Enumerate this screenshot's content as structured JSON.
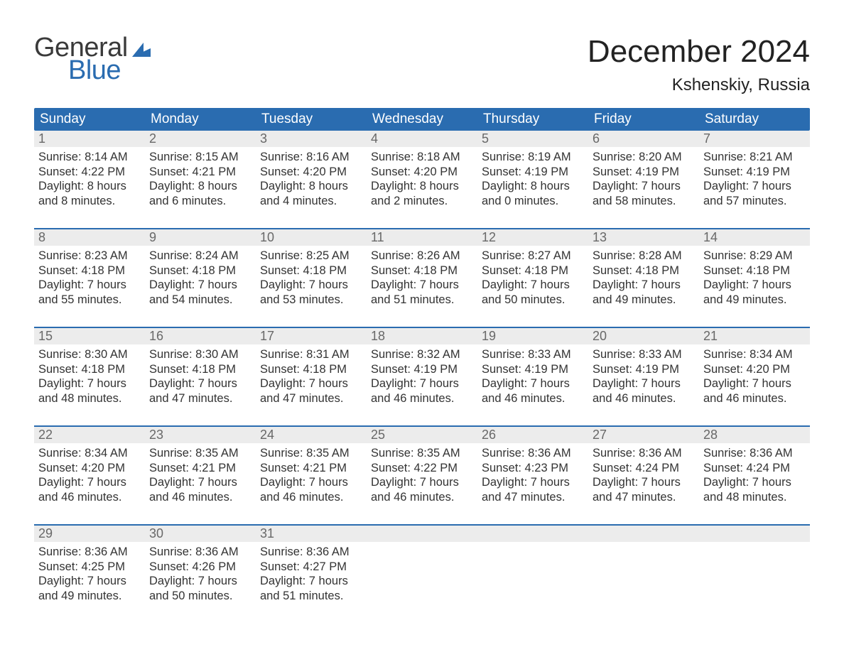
{
  "brand": {
    "word1": "General",
    "word2": "Blue",
    "color_general": "#3a3a3a",
    "color_blue": "#2a6cb0"
  },
  "header": {
    "month_title": "December 2024",
    "location": "Kshenskiy, Russia"
  },
  "style": {
    "header_bg": "#2a6cb0",
    "header_text": "#ffffff",
    "daynum_bg": "#ececec",
    "daynum_text": "#686868",
    "body_text": "#303030",
    "week_divider": "#2a6cb0",
    "page_bg": "#ffffff",
    "font_family": "Arial",
    "month_title_fontsize": 44,
    "location_fontsize": 24,
    "weekday_fontsize": 19,
    "cell_fontsize": 16.5
  },
  "weekdays": [
    "Sunday",
    "Monday",
    "Tuesday",
    "Wednesday",
    "Thursday",
    "Friday",
    "Saturday"
  ],
  "weeks": [
    [
      {
        "n": "1",
        "sunrise": "Sunrise: 8:14 AM",
        "sunset": "Sunset: 4:22 PM",
        "day1": "Daylight: 8 hours",
        "day2": "and 8 minutes."
      },
      {
        "n": "2",
        "sunrise": "Sunrise: 8:15 AM",
        "sunset": "Sunset: 4:21 PM",
        "day1": "Daylight: 8 hours",
        "day2": "and 6 minutes."
      },
      {
        "n": "3",
        "sunrise": "Sunrise: 8:16 AM",
        "sunset": "Sunset: 4:20 PM",
        "day1": "Daylight: 8 hours",
        "day2": "and 4 minutes."
      },
      {
        "n": "4",
        "sunrise": "Sunrise: 8:18 AM",
        "sunset": "Sunset: 4:20 PM",
        "day1": "Daylight: 8 hours",
        "day2": "and 2 minutes."
      },
      {
        "n": "5",
        "sunrise": "Sunrise: 8:19 AM",
        "sunset": "Sunset: 4:19 PM",
        "day1": "Daylight: 8 hours",
        "day2": "and 0 minutes."
      },
      {
        "n": "6",
        "sunrise": "Sunrise: 8:20 AM",
        "sunset": "Sunset: 4:19 PM",
        "day1": "Daylight: 7 hours",
        "day2": "and 58 minutes."
      },
      {
        "n": "7",
        "sunrise": "Sunrise: 8:21 AM",
        "sunset": "Sunset: 4:19 PM",
        "day1": "Daylight: 7 hours",
        "day2": "and 57 minutes."
      }
    ],
    [
      {
        "n": "8",
        "sunrise": "Sunrise: 8:23 AM",
        "sunset": "Sunset: 4:18 PM",
        "day1": "Daylight: 7 hours",
        "day2": "and 55 minutes."
      },
      {
        "n": "9",
        "sunrise": "Sunrise: 8:24 AM",
        "sunset": "Sunset: 4:18 PM",
        "day1": "Daylight: 7 hours",
        "day2": "and 54 minutes."
      },
      {
        "n": "10",
        "sunrise": "Sunrise: 8:25 AM",
        "sunset": "Sunset: 4:18 PM",
        "day1": "Daylight: 7 hours",
        "day2": "and 53 minutes."
      },
      {
        "n": "11",
        "sunrise": "Sunrise: 8:26 AM",
        "sunset": "Sunset: 4:18 PM",
        "day1": "Daylight: 7 hours",
        "day2": "and 51 minutes."
      },
      {
        "n": "12",
        "sunrise": "Sunrise: 8:27 AM",
        "sunset": "Sunset: 4:18 PM",
        "day1": "Daylight: 7 hours",
        "day2": "and 50 minutes."
      },
      {
        "n": "13",
        "sunrise": "Sunrise: 8:28 AM",
        "sunset": "Sunset: 4:18 PM",
        "day1": "Daylight: 7 hours",
        "day2": "and 49 minutes."
      },
      {
        "n": "14",
        "sunrise": "Sunrise: 8:29 AM",
        "sunset": "Sunset: 4:18 PM",
        "day1": "Daylight: 7 hours",
        "day2": "and 49 minutes."
      }
    ],
    [
      {
        "n": "15",
        "sunrise": "Sunrise: 8:30 AM",
        "sunset": "Sunset: 4:18 PM",
        "day1": "Daylight: 7 hours",
        "day2": "and 48 minutes."
      },
      {
        "n": "16",
        "sunrise": "Sunrise: 8:30 AM",
        "sunset": "Sunset: 4:18 PM",
        "day1": "Daylight: 7 hours",
        "day2": "and 47 minutes."
      },
      {
        "n": "17",
        "sunrise": "Sunrise: 8:31 AM",
        "sunset": "Sunset: 4:18 PM",
        "day1": "Daylight: 7 hours",
        "day2": "and 47 minutes."
      },
      {
        "n": "18",
        "sunrise": "Sunrise: 8:32 AM",
        "sunset": "Sunset: 4:19 PM",
        "day1": "Daylight: 7 hours",
        "day2": "and 46 minutes."
      },
      {
        "n": "19",
        "sunrise": "Sunrise: 8:33 AM",
        "sunset": "Sunset: 4:19 PM",
        "day1": "Daylight: 7 hours",
        "day2": "and 46 minutes."
      },
      {
        "n": "20",
        "sunrise": "Sunrise: 8:33 AM",
        "sunset": "Sunset: 4:19 PM",
        "day1": "Daylight: 7 hours",
        "day2": "and 46 minutes."
      },
      {
        "n": "21",
        "sunrise": "Sunrise: 8:34 AM",
        "sunset": "Sunset: 4:20 PM",
        "day1": "Daylight: 7 hours",
        "day2": "and 46 minutes."
      }
    ],
    [
      {
        "n": "22",
        "sunrise": "Sunrise: 8:34 AM",
        "sunset": "Sunset: 4:20 PM",
        "day1": "Daylight: 7 hours",
        "day2": "and 46 minutes."
      },
      {
        "n": "23",
        "sunrise": "Sunrise: 8:35 AM",
        "sunset": "Sunset: 4:21 PM",
        "day1": "Daylight: 7 hours",
        "day2": "and 46 minutes."
      },
      {
        "n": "24",
        "sunrise": "Sunrise: 8:35 AM",
        "sunset": "Sunset: 4:21 PM",
        "day1": "Daylight: 7 hours",
        "day2": "and 46 minutes."
      },
      {
        "n": "25",
        "sunrise": "Sunrise: 8:35 AM",
        "sunset": "Sunset: 4:22 PM",
        "day1": "Daylight: 7 hours",
        "day2": "and 46 minutes."
      },
      {
        "n": "26",
        "sunrise": "Sunrise: 8:36 AM",
        "sunset": "Sunset: 4:23 PM",
        "day1": "Daylight: 7 hours",
        "day2": "and 47 minutes."
      },
      {
        "n": "27",
        "sunrise": "Sunrise: 8:36 AM",
        "sunset": "Sunset: 4:24 PM",
        "day1": "Daylight: 7 hours",
        "day2": "and 47 minutes."
      },
      {
        "n": "28",
        "sunrise": "Sunrise: 8:36 AM",
        "sunset": "Sunset: 4:24 PM",
        "day1": "Daylight: 7 hours",
        "day2": "and 48 minutes."
      }
    ],
    [
      {
        "n": "29",
        "sunrise": "Sunrise: 8:36 AM",
        "sunset": "Sunset: 4:25 PM",
        "day1": "Daylight: 7 hours",
        "day2": "and 49 minutes."
      },
      {
        "n": "30",
        "sunrise": "Sunrise: 8:36 AM",
        "sunset": "Sunset: 4:26 PM",
        "day1": "Daylight: 7 hours",
        "day2": "and 50 minutes."
      },
      {
        "n": "31",
        "sunrise": "Sunrise: 8:36 AM",
        "sunset": "Sunset: 4:27 PM",
        "day1": "Daylight: 7 hours",
        "day2": "and 51 minutes."
      },
      {
        "n": "",
        "sunrise": "",
        "sunset": "",
        "day1": "",
        "day2": ""
      },
      {
        "n": "",
        "sunrise": "",
        "sunset": "",
        "day1": "",
        "day2": ""
      },
      {
        "n": "",
        "sunrise": "",
        "sunset": "",
        "day1": "",
        "day2": ""
      },
      {
        "n": "",
        "sunrise": "",
        "sunset": "",
        "day1": "",
        "day2": ""
      }
    ]
  ]
}
